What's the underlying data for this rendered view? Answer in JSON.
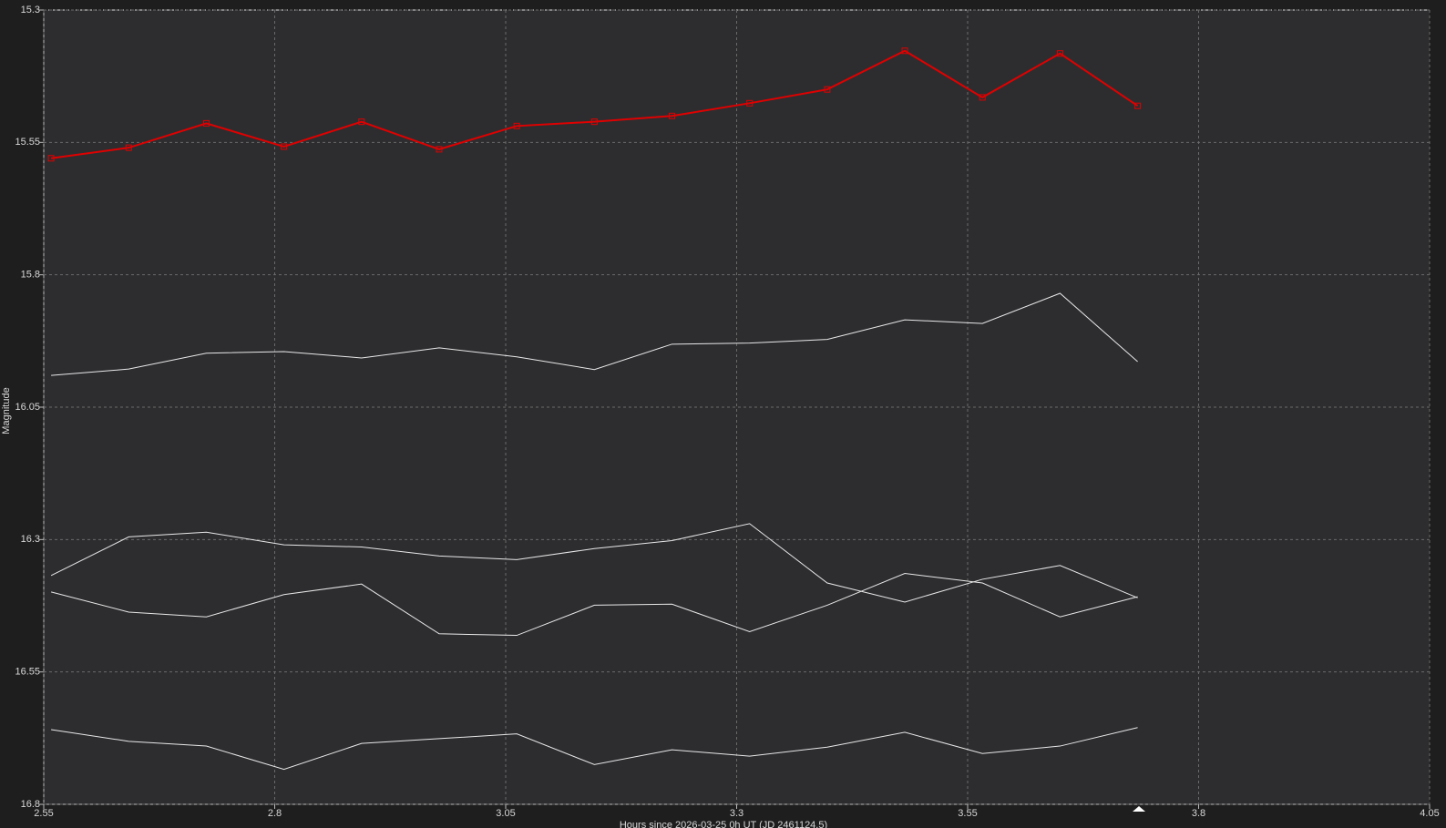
{
  "chart_data": {
    "type": "line",
    "x_label": "Hours since 2026-03-25 0h UT (JD 2461124.5)",
    "y_label": "Magnitude",
    "x": [
      2.558,
      2.642,
      2.726,
      2.81,
      2.894,
      2.978,
      3.062,
      3.146,
      3.23,
      3.314,
      3.398,
      3.482,
      3.566,
      3.65,
      3.734
    ],
    "series": [
      {
        "color": "#e00000",
        "marker": "square",
        "values": [
          15.58,
          15.56,
          15.514,
          15.558,
          15.511,
          15.563,
          15.519,
          15.511,
          15.5,
          15.476,
          15.45,
          15.377,
          15.465,
          15.382,
          15.481
        ]
      },
      {
        "color": "#e8e8e8",
        "values": [
          15.99,
          15.978,
          15.948,
          15.945,
          15.957,
          15.938,
          15.955,
          15.979,
          15.931,
          15.929,
          15.922,
          15.885,
          15.892,
          15.835,
          15.964
        ]
      },
      {
        "color": "#e8e8e8",
        "values": [
          16.368,
          16.295,
          16.286,
          16.31,
          16.314,
          16.331,
          16.338,
          16.317,
          16.302,
          16.27,
          16.382,
          16.418,
          16.375,
          16.349,
          16.41
        ]
      },
      {
        "color": "#e8e8e8",
        "values": [
          16.399,
          16.437,
          16.446,
          16.404,
          16.384,
          16.478,
          16.481,
          16.424,
          16.422,
          16.474,
          16.424,
          16.364,
          16.382,
          16.446,
          16.408
        ]
      },
      {
        "color": "#e8e8e8",
        "values": [
          16.659,
          16.681,
          16.69,
          16.734,
          16.685,
          16.676,
          16.667,
          16.725,
          16.697,
          16.709,
          16.692,
          16.664,
          16.704,
          16.69,
          16.655
        ]
      }
    ],
    "xlim": [
      2.55,
      4.05
    ],
    "xticks": [
      2.55,
      2.8,
      3.05,
      3.3,
      3.55,
      3.8,
      4.05
    ],
    "ylim": [
      15.3,
      16.8
    ],
    "yticks": [
      15.3,
      15.55,
      15.8,
      16.05,
      16.3,
      16.55,
      16.8
    ],
    "y_inverted": true,
    "grid": true
  }
}
